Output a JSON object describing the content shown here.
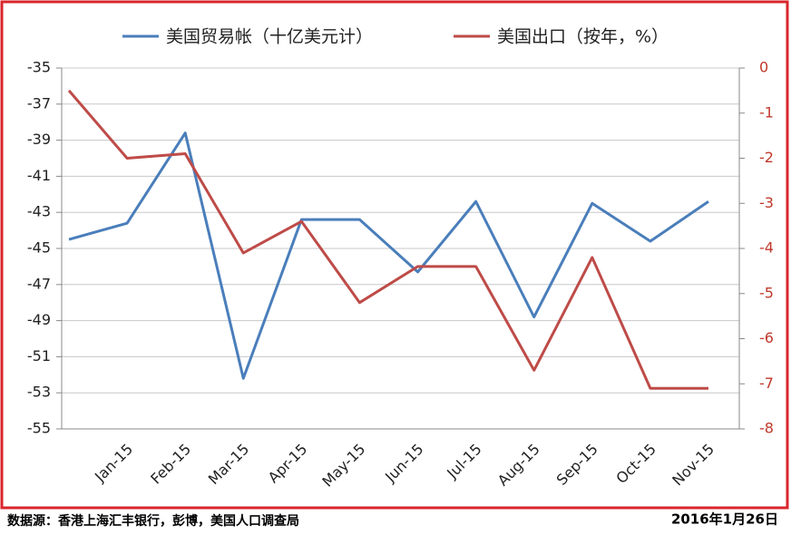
{
  "chart_data": {
    "type": "line",
    "categories": [
      null,
      "Jan-15",
      "Feb-15",
      "Mar-15",
      "Apr-15",
      "May-15",
      "Jun-15",
      "Jul-15",
      "Aug-15",
      "Sep-15",
      "Oct-15",
      "Nov-15"
    ],
    "series": [
      {
        "name": "美国贸易帐（十亿美元计）",
        "color": "#4a7ebb",
        "values": [
          -44.5,
          -43.6,
          -38.6,
          -52.2,
          -43.4,
          -43.4,
          -46.3,
          -42.4,
          -48.8,
          -42.5,
          -44.6,
          -42.4
        ]
      },
      {
        "name": "美国出口（按年，%）",
        "color": "#be4b48",
        "axis": "y2",
        "values": [
          -0.5,
          -2.0,
          -1.9,
          -4.1,
          -3.4,
          -5.2,
          -4.4,
          -4.4,
          -6.7,
          -4.2,
          -7.1,
          -7.1
        ]
      }
    ],
    "ylim": [
      -55,
      -35
    ],
    "yticks": [
      -35,
      -37,
      -39,
      -41,
      -43,
      -45,
      -47,
      -49,
      -51,
      -53,
      -55
    ],
    "y2lim": [
      -8,
      0
    ],
    "y2ticks": [
      0,
      -1,
      -2,
      -3,
      -4,
      -5,
      -6,
      -7,
      -8
    ],
    "grid": true,
    "legend": "top"
  },
  "source": "数据源：香港上海汇丰银行，彭博，美国人口调查局",
  "date": "2016年1月26日"
}
